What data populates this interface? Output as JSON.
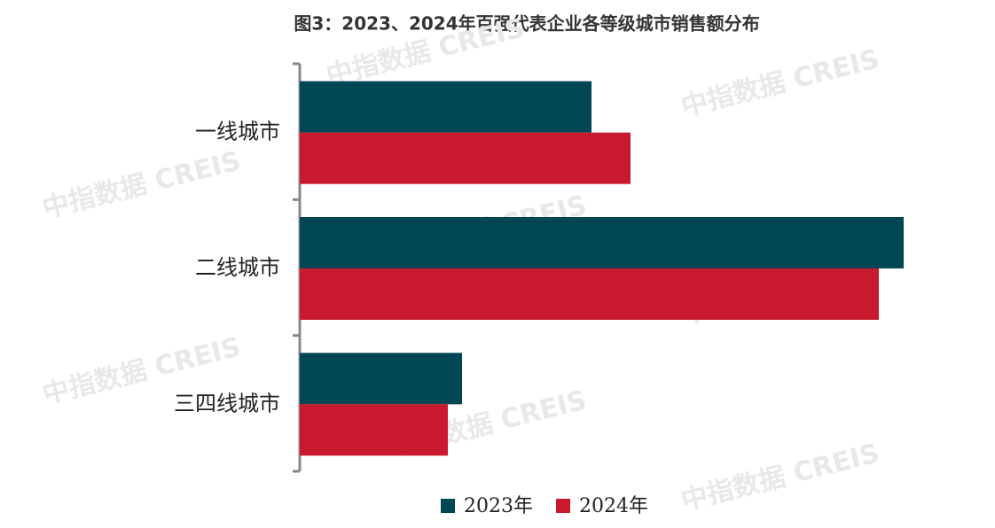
{
  "chart_data": {
    "type": "hbar",
    "title": "图3：2023、2024年百强代表企业各等级城市销售额分布",
    "watermark": "中指数据 CREIS",
    "categories": [
      "一线城市",
      "二线城市",
      "三四线城市"
    ],
    "series": [
      {
        "name": "2023年",
        "color": "#004654",
        "values": [
          329,
          681,
          183
        ]
      },
      {
        "name": "2024年",
        "color": "#c8192e",
        "values": [
          373,
          653,
          167
        ]
      }
    ],
    "legend": "bottom"
  }
}
